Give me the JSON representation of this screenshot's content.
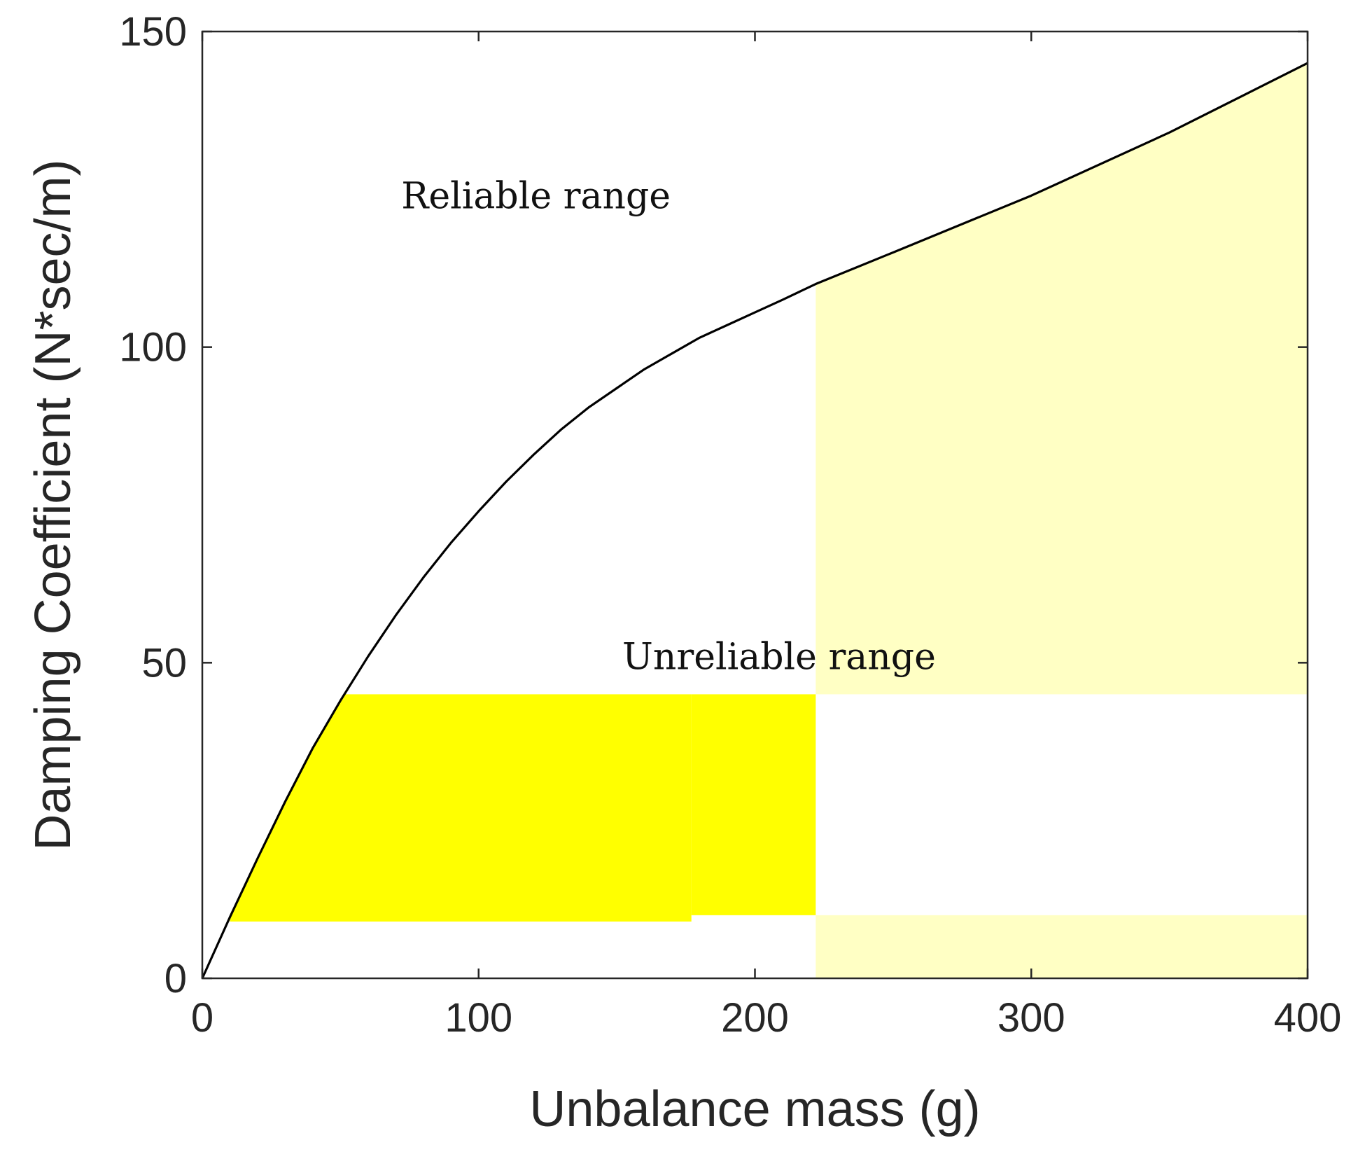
{
  "chart_data": {
    "type": "line",
    "title": "",
    "xlabel": "Unbalance mass (g)",
    "ylabel": "Damping Coefficient (N*sec/m)",
    "xlim": [
      0,
      400
    ],
    "ylim": [
      0,
      150
    ],
    "x_ticks": [
      0,
      100,
      200,
      300,
      400
    ],
    "y_ticks": [
      0,
      50,
      100,
      150
    ],
    "grid": false,
    "series": [
      {
        "name": "boundary",
        "color": "#000000",
        "x": [
          0,
          10,
          20,
          30,
          40,
          50,
          60,
          70,
          80,
          90,
          100,
          110,
          120,
          130,
          140,
          150,
          160,
          170,
          180,
          190,
          200,
          210,
          222,
          250,
          300,
          350,
          400
        ],
        "y": [
          0,
          9.7,
          19,
          28,
          36.5,
          44,
          51,
          57.5,
          63.5,
          69,
          74,
          78.7,
          83,
          87,
          90.5,
          93.5,
          96.5,
          99,
          101.5,
          103.5,
          105.5,
          107.5,
          110,
          115,
          124,
          134,
          145
        ]
      }
    ],
    "shaded_regions": [
      {
        "name": "unreliable-bright-1",
        "color": "#ffff00",
        "x_range": [
          10,
          177
        ],
        "y_range": [
          9,
          45
        ],
        "clip_under_curve": true
      },
      {
        "name": "unreliable-bright-2",
        "color": "#ffff00",
        "x_range": [
          177,
          222
        ],
        "y_range": [
          10,
          45
        ],
        "clip_under_curve": false
      },
      {
        "name": "unreliable-pale-upper",
        "color": "#ffffc4",
        "x_range": [
          222,
          400
        ],
        "y_range": [
          45,
          150
        ],
        "clip_under_curve": true
      },
      {
        "name": "unreliable-pale-lower",
        "color": "#ffffc4",
        "x_range": [
          222,
          400
        ],
        "y_range": [
          0,
          10
        ],
        "clip_under_curve": false
      }
    ],
    "annotations": [
      {
        "name": "reliable-range-label",
        "text": "Reliable range",
        "x": 72,
        "y": 122
      },
      {
        "name": "unreliable-range-label",
        "text": "Unreliable range",
        "x": 152,
        "y": 49
      }
    ]
  }
}
